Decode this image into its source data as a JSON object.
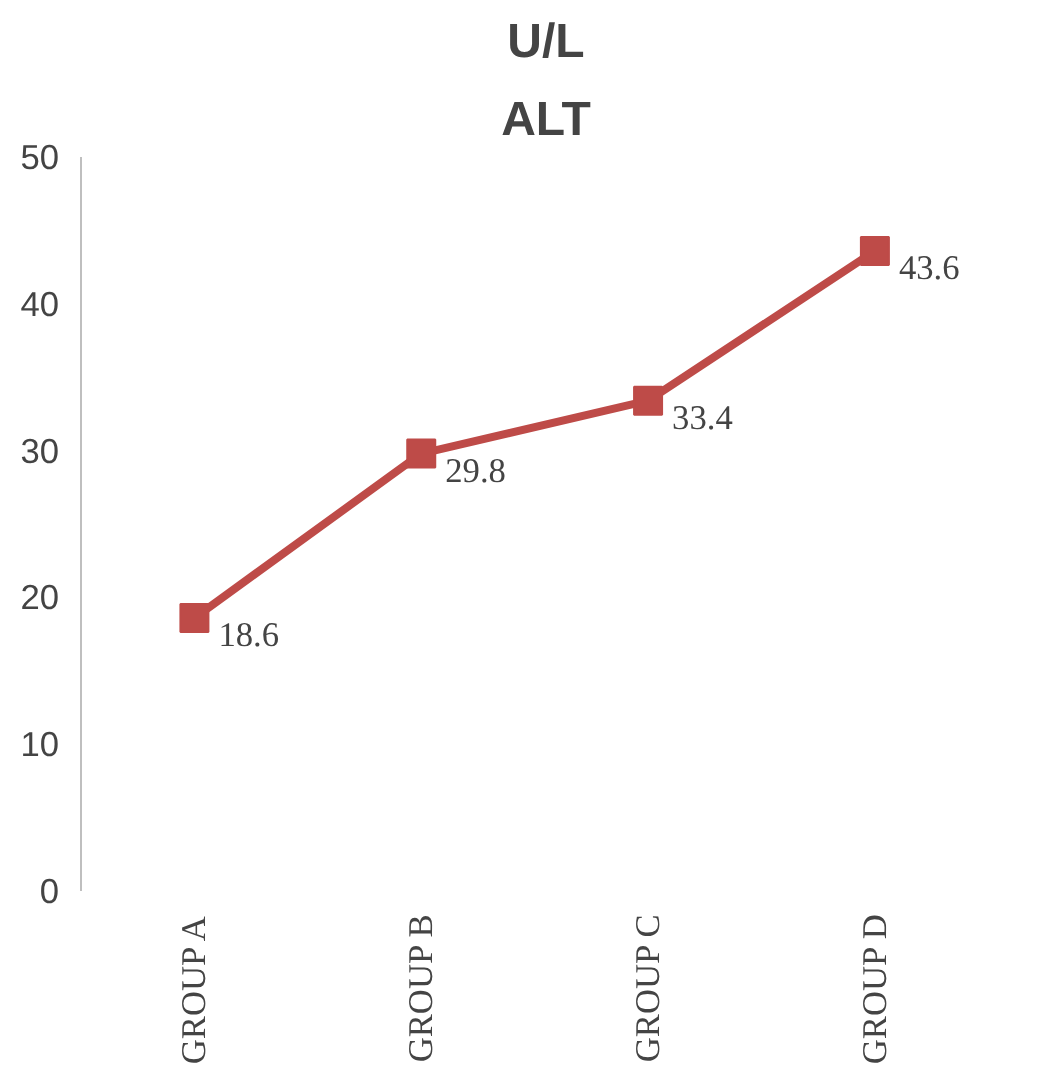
{
  "chart_data": {
    "type": "line",
    "title": "U/L",
    "subtitle": "ALT",
    "categories": [
      "GROUP A",
      "GROUP B",
      "GROUP C",
      "GROUP D"
    ],
    "series": [
      {
        "color": "#be4b48",
        "values": [
          18.6,
          29.8,
          33.4,
          43.6
        ]
      }
    ],
    "ylim": [
      0,
      50
    ],
    "yticks": [
      0,
      10,
      20,
      30,
      40,
      50
    ],
    "grid": false,
    "marker": "square",
    "line_style": "solid",
    "data_labels": true
  }
}
